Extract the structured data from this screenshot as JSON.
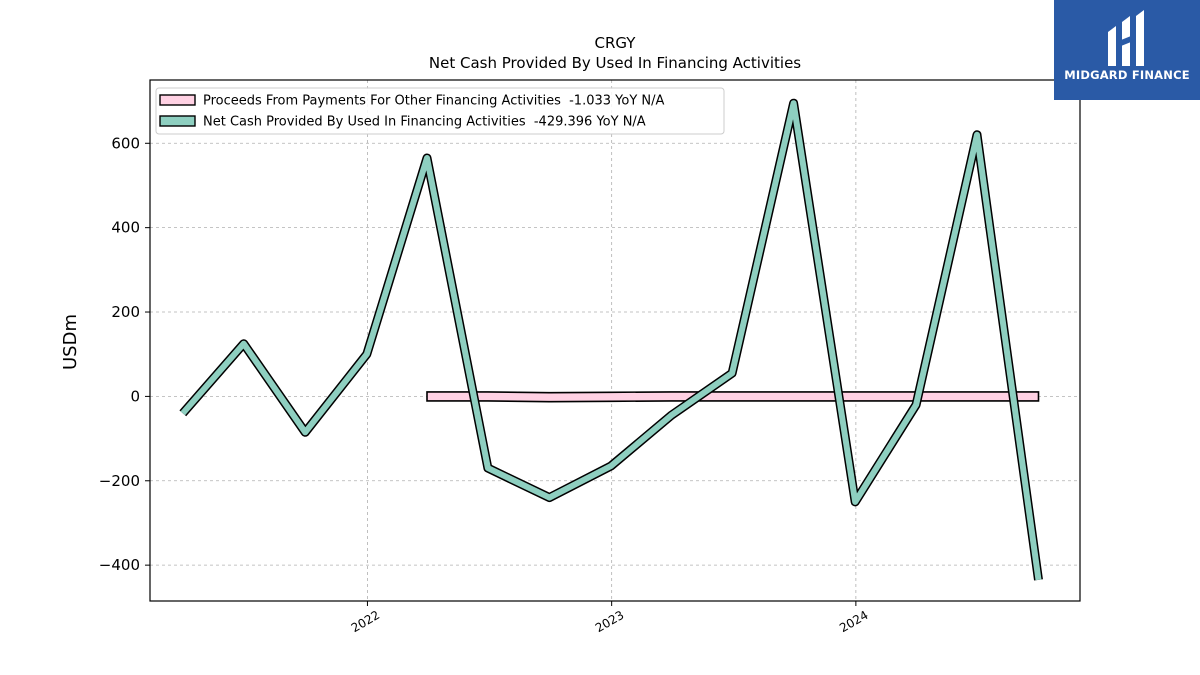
{
  "logo": {
    "text": "MIDGARD FINANCE",
    "background": "#2a5aa6"
  },
  "chart_data": {
    "type": "line",
    "title": "CRGY",
    "subtitle": "Net Cash Provided By Used In Financing Activities",
    "ylabel": "USDm",
    "xlabel": "",
    "ylim": [
      -485,
      750
    ],
    "xlim": [
      "2021-02-10",
      "2024-12-01"
    ],
    "yticks": [
      -400,
      -200,
      0,
      200,
      400,
      600
    ],
    "ytick_labels": [
      "−400",
      "−200",
      "0",
      "200",
      "400",
      "600"
    ],
    "xticks": [
      "2022-01-01",
      "2023-01-01",
      "2024-01-01"
    ],
    "xtick_labels": [
      "2022",
      "2023",
      "2024"
    ],
    "grid": true,
    "legend_position": "top-left",
    "series": [
      {
        "name": "Proceeds From Payments For Other Financing Activities",
        "legend": "Proceeds From Payments For Other Financing Activities  -1.033 YoY N/A",
        "color": "#ffd1e3",
        "x": [
          "2022-03-31",
          "2022-06-30",
          "2022-09-30",
          "2022-12-31",
          "2023-03-31",
          "2023-06-30",
          "2023-09-30",
          "2023-12-31",
          "2024-03-31",
          "2024-06-30",
          "2024-09-30"
        ],
        "values": [
          0,
          0,
          -2,
          -1,
          0,
          0,
          0,
          0,
          0,
          0,
          0
        ]
      },
      {
        "name": "Net Cash Provided By Used In Financing Activities",
        "legend": "Net Cash Provided By Used In Financing Activities  -429.396 YoY N/A",
        "color": "#8ecfc0",
        "x": [
          "2021-03-31",
          "2021-06-30",
          "2021-09-30",
          "2021-12-31",
          "2022-03-31",
          "2022-06-30",
          "2022-09-30",
          "2022-12-31",
          "2023-03-31",
          "2023-06-30",
          "2023-09-30",
          "2023-12-31",
          "2024-03-31",
          "2024-06-30",
          "2024-09-30"
        ],
        "values": [
          -40,
          125,
          -85,
          100,
          565,
          -170,
          -240,
          -165,
          -45,
          55,
          695,
          -250,
          -20,
          620,
          -435
        ]
      }
    ]
  }
}
